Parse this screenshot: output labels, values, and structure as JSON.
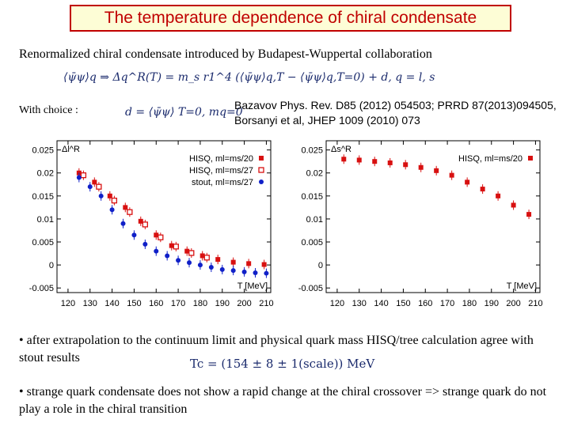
{
  "title": "The temperature dependence of chiral condensate",
  "subtitle": "Renormalized chiral condensate introduced by Budapest-Wuppertal collaboration",
  "equation_main": "⟨ψ̄ψ⟩q ⇒ Δq^R(T) = m_s r1^4 (⟨ψ̄ψ⟩q,T − ⟨ψ̄ψ⟩q,T=0) + d,   q = l, s",
  "choice_label": "With  choice :",
  "equation_choice": "d = ⟨ψ̄ψ⟩ T=0, mq=0",
  "reference": "Bazavov Phys. Rev. D85 (2012) 054503; PRRD 87(2013)094505, Borsanyi et al, JHEP 1009 (2010) 073",
  "bullet1": "• after extrapolation to the continuum limit and physical quark mass HISQ/tree calculation agree with stout results",
  "tc_formula": "Tc = (154 ± 8 ± 1(scale)) MeV",
  "bullet2": "• strange quark condensate does not show a rapid change at the chiral crossover => strange quark do not play a role in the chiral transition",
  "colors": {
    "title": "#c00000",
    "hisq": "#d81010",
    "stout": "#1020c8"
  },
  "chart_data": [
    {
      "type": "scatter",
      "ylabel": "Δl^R",
      "xlabel": "T [MeV]",
      "xlim": [
        115,
        212
      ],
      "ylim": [
        -0.006,
        0.027
      ],
      "xticks": [
        "120",
        "130",
        "140",
        "150",
        "160",
        "170",
        "180",
        "190",
        "200",
        "210"
      ],
      "yticks": [
        "0.025",
        "0.02",
        "0.015",
        "0.01",
        "0.005",
        "0",
        "-0.005"
      ],
      "series": [
        {
          "name": "HISQ, ml=ms/20",
          "marker": "filled-square",
          "x": [
            125,
            132,
            139,
            146,
            153,
            160,
            167,
            174,
            181,
            188,
            195,
            202,
            209
          ],
          "y": [
            0.02,
            0.018,
            0.015,
            0.0125,
            0.0095,
            0.0065,
            0.0042,
            0.003,
            0.002,
            0.0012,
            0.0006,
            0.0003,
            0.0001
          ]
        },
        {
          "name": "HISQ, ml=ms/27",
          "marker": "open-square",
          "x": [
            127,
            134,
            141,
            148,
            155,
            162,
            169,
            176,
            183
          ],
          "y": [
            0.0195,
            0.017,
            0.014,
            0.0115,
            0.0088,
            0.006,
            0.004,
            0.0026,
            0.0016
          ]
        },
        {
          "name": "stout, ml=ms/27",
          "marker": "filled-circle",
          "x": [
            125,
            130,
            135,
            140,
            145,
            150,
            155,
            160,
            165,
            170,
            175,
            180,
            185,
            190,
            195,
            200,
            205,
            210
          ],
          "y": [
            0.019,
            0.017,
            0.015,
            0.012,
            0.009,
            0.0065,
            0.0045,
            0.003,
            0.002,
            0.001,
            0.0005,
            0.0,
            -0.0005,
            -0.001,
            -0.0012,
            -0.0015,
            -0.0017,
            -0.0018
          ]
        }
      ],
      "legend": [
        "HISQ, ml=ms/20",
        "HISQ, ml=ms/27",
        "stout, ml=ms/27"
      ]
    },
    {
      "type": "scatter",
      "ylabel": "Δs^R",
      "xlabel": "T [MeV]",
      "xlim": [
        115,
        212
      ],
      "ylim": [
        -0.006,
        0.027
      ],
      "xticks": [
        "120",
        "130",
        "140",
        "150",
        "160",
        "170",
        "180",
        "190",
        "200",
        "210"
      ],
      "yticks": [
        "0.025",
        "0.02",
        "0.015",
        "0.01",
        "0.005",
        "0",
        "-0.005"
      ],
      "series": [
        {
          "name": "HISQ, ml=ms/20",
          "marker": "filled-square",
          "x": [
            123,
            130,
            137,
            144,
            151,
            158,
            165,
            172,
            179,
            186,
            193,
            200,
            207
          ],
          "y": [
            0.023,
            0.0228,
            0.0225,
            0.0222,
            0.0218,
            0.0212,
            0.0205,
            0.0195,
            0.018,
            0.0165,
            0.015,
            0.013,
            0.011
          ]
        }
      ],
      "legend": [
        "HISQ, ml=ms/20"
      ]
    }
  ]
}
